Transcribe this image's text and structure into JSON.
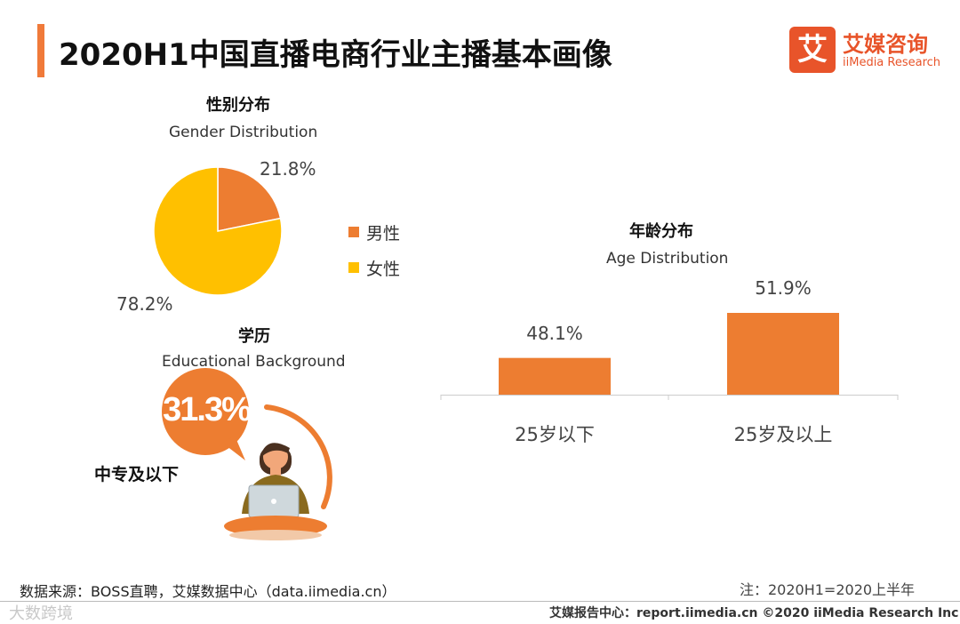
{
  "title": "2020H1中国直播电商行业主播基本画像",
  "logo": {
    "mark": "艾",
    "name_cn": "艾媒咨询",
    "name_en": "iiMedia Research"
  },
  "colors": {
    "accent": "#f07a3a",
    "male": "#ed7d31",
    "female": "#ffc000",
    "logo": "#e8542a"
  },
  "chart_data": [
    {
      "type": "pie",
      "title": "性别分布",
      "subtitle": "Gender Distribution",
      "categories": [
        "男性",
        "女性"
      ],
      "values": [
        21.8,
        78.2
      ],
      "labels": [
        "21.8%",
        "78.2%"
      ],
      "legend": "right"
    },
    {
      "type": "bar",
      "title": "年龄分布",
      "subtitle": "Age Distribution",
      "categories": [
        "25岁以下",
        "25岁及以上"
      ],
      "values": [
        48.1,
        51.9
      ],
      "labels": [
        "48.1%",
        "51.9%"
      ],
      "ylim": [
        0,
        60
      ]
    }
  ],
  "education": {
    "title": "学历",
    "subtitle": "Educational  Background",
    "percent": "31.3%",
    "value": 31.3,
    "label": "中专及以下"
  },
  "source": "数据来源：BOSS直聘，艾媒数据中心（data.iimedia.cn）",
  "note": "注：2020H1=2020上半年",
  "footer": "艾媒报告中心：report.iimedia.cn  ©2020  iiMedia Research  Inc",
  "watermark": "大数跨境"
}
